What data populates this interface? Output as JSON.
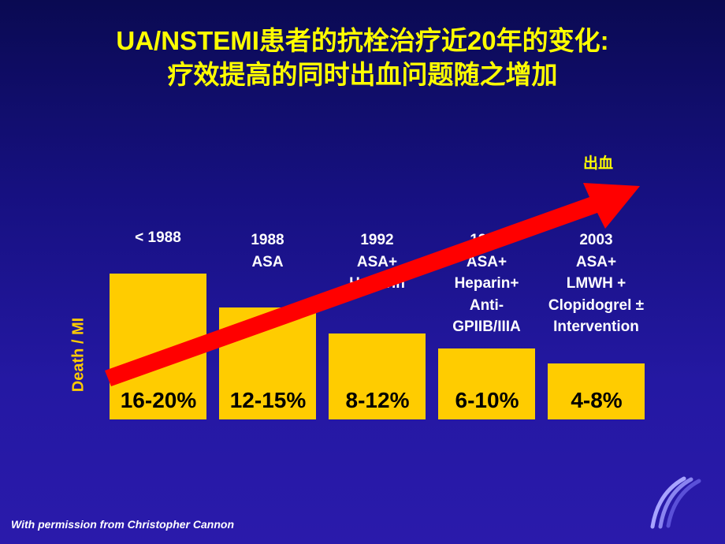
{
  "title_line1": "UA/NSTEMI患者的抗栓治疗近20年的变化:",
  "title_line2": "疗效提高的同时出血问题随之增加",
  "chart_data": {
    "type": "bar",
    "ylabel": "Death / MI",
    "categories": [
      "< 1988",
      "1988\nASA",
      "1992\nASA+\nHeparin",
      "1998\nASA+\nHeparin+\nAnti-\nGPIIB/IIIA",
      "2003\nASA+\nLMWH +\nClopidogrel ±\nIntervention"
    ],
    "value_labels": [
      "16-20%",
      "12-15%",
      "8-12%",
      "6-10%",
      "4-8%"
    ],
    "ranges": [
      [
        16,
        20
      ],
      [
        12,
        15
      ],
      [
        8,
        12
      ],
      [
        6,
        10
      ],
      [
        4,
        8
      ]
    ],
    "grid": false,
    "annotation_arrow_label": "出血",
    "colors": {
      "bar": "#ffcc00",
      "arrow": "#ff0000",
      "title": "#ffff00"
    }
  },
  "credit": "With permission from Christopher Cannon"
}
